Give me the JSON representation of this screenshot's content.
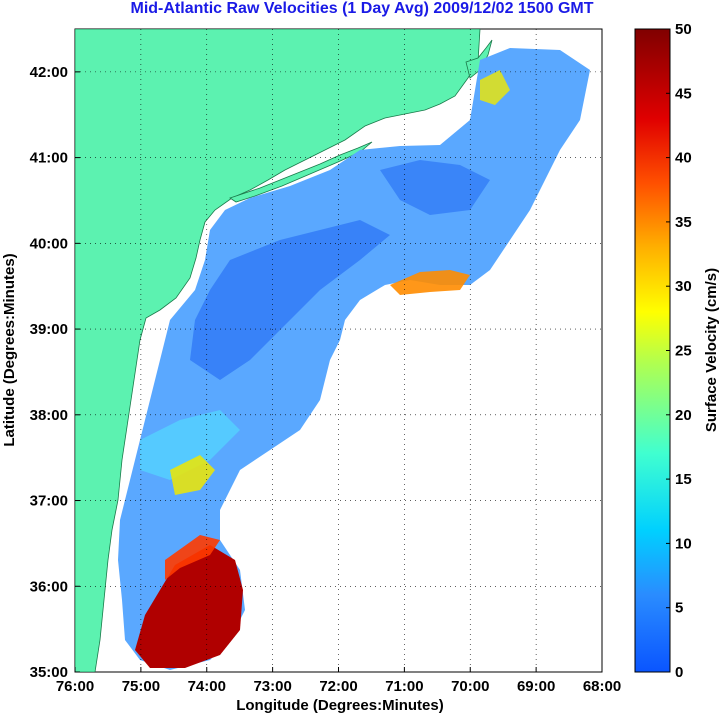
{
  "title": "Mid-Atlantic Raw Velocities (1 Day Avg) 2009/12/02 1500 GMT",
  "map": {
    "xlabel": "Longitude (Degrees:Minutes)",
    "ylabel": "Latitude (Degrees:Minutes)",
    "x_ticks": [
      "76:00",
      "75:00",
      "74:00",
      "73:00",
      "72:00",
      "71:00",
      "70:00",
      "69:00",
      "68:00"
    ],
    "y_ticks": [
      "35:00",
      "36:00",
      "37:00",
      "38:00",
      "39:00",
      "40:00",
      "41:00",
      "42:00"
    ],
    "lon_range": [
      -76,
      -68
    ],
    "lat_range": [
      35,
      42.5
    ],
    "grid": "dotted",
    "land_color": "#5cf2b0",
    "ocean_color": "#ffffff"
  },
  "colorbar": {
    "label": "Surface Velocity (cm/s)",
    "ticks": [
      "0",
      "5",
      "10",
      "15",
      "20",
      "25",
      "30",
      "35",
      "40",
      "45",
      "50"
    ],
    "range": [
      0,
      50
    ],
    "colormap": "jet"
  }
}
